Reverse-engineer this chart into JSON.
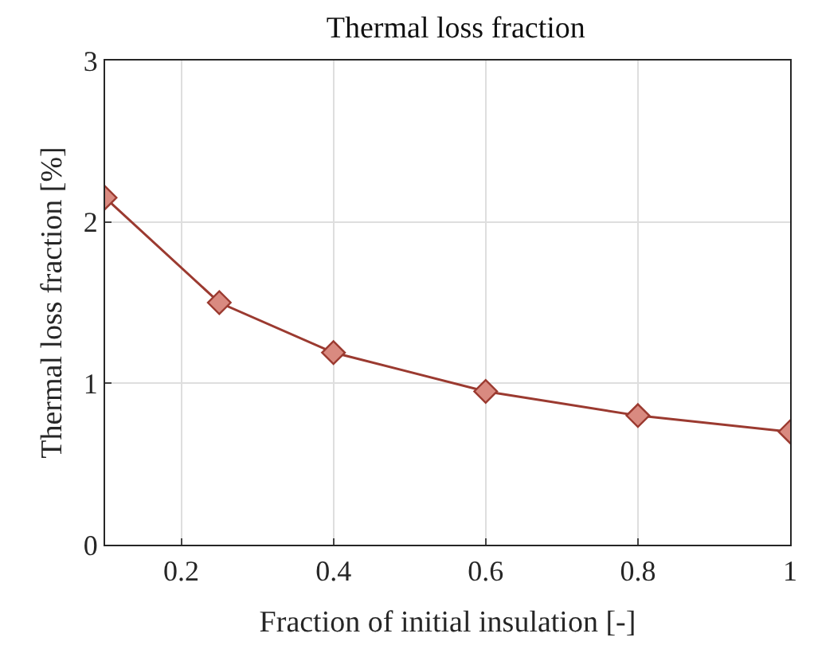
{
  "chart_data": {
    "type": "line",
    "title": "Thermal loss fraction",
    "xlabel": "Fraction of initial insulation [-]",
    "ylabel": "Thermal loss fraction [%]",
    "x": [
      0.1,
      0.25,
      0.4,
      0.6,
      0.8,
      1.0
    ],
    "series": [
      {
        "color": "#9b3a30",
        "values": [
          2.15,
          1.5,
          1.19,
          0.95,
          0.8,
          0.7
        ]
      }
    ],
    "xlim": [
      0.1,
      1
    ],
    "xticks": [
      0.2,
      0.4,
      0.6,
      0.8,
      1
    ],
    "ylim": [
      0,
      3
    ],
    "yticks": [
      0,
      1,
      2,
      3
    ],
    "grid": true,
    "marker": "diamond",
    "line_style": "solid"
  }
}
